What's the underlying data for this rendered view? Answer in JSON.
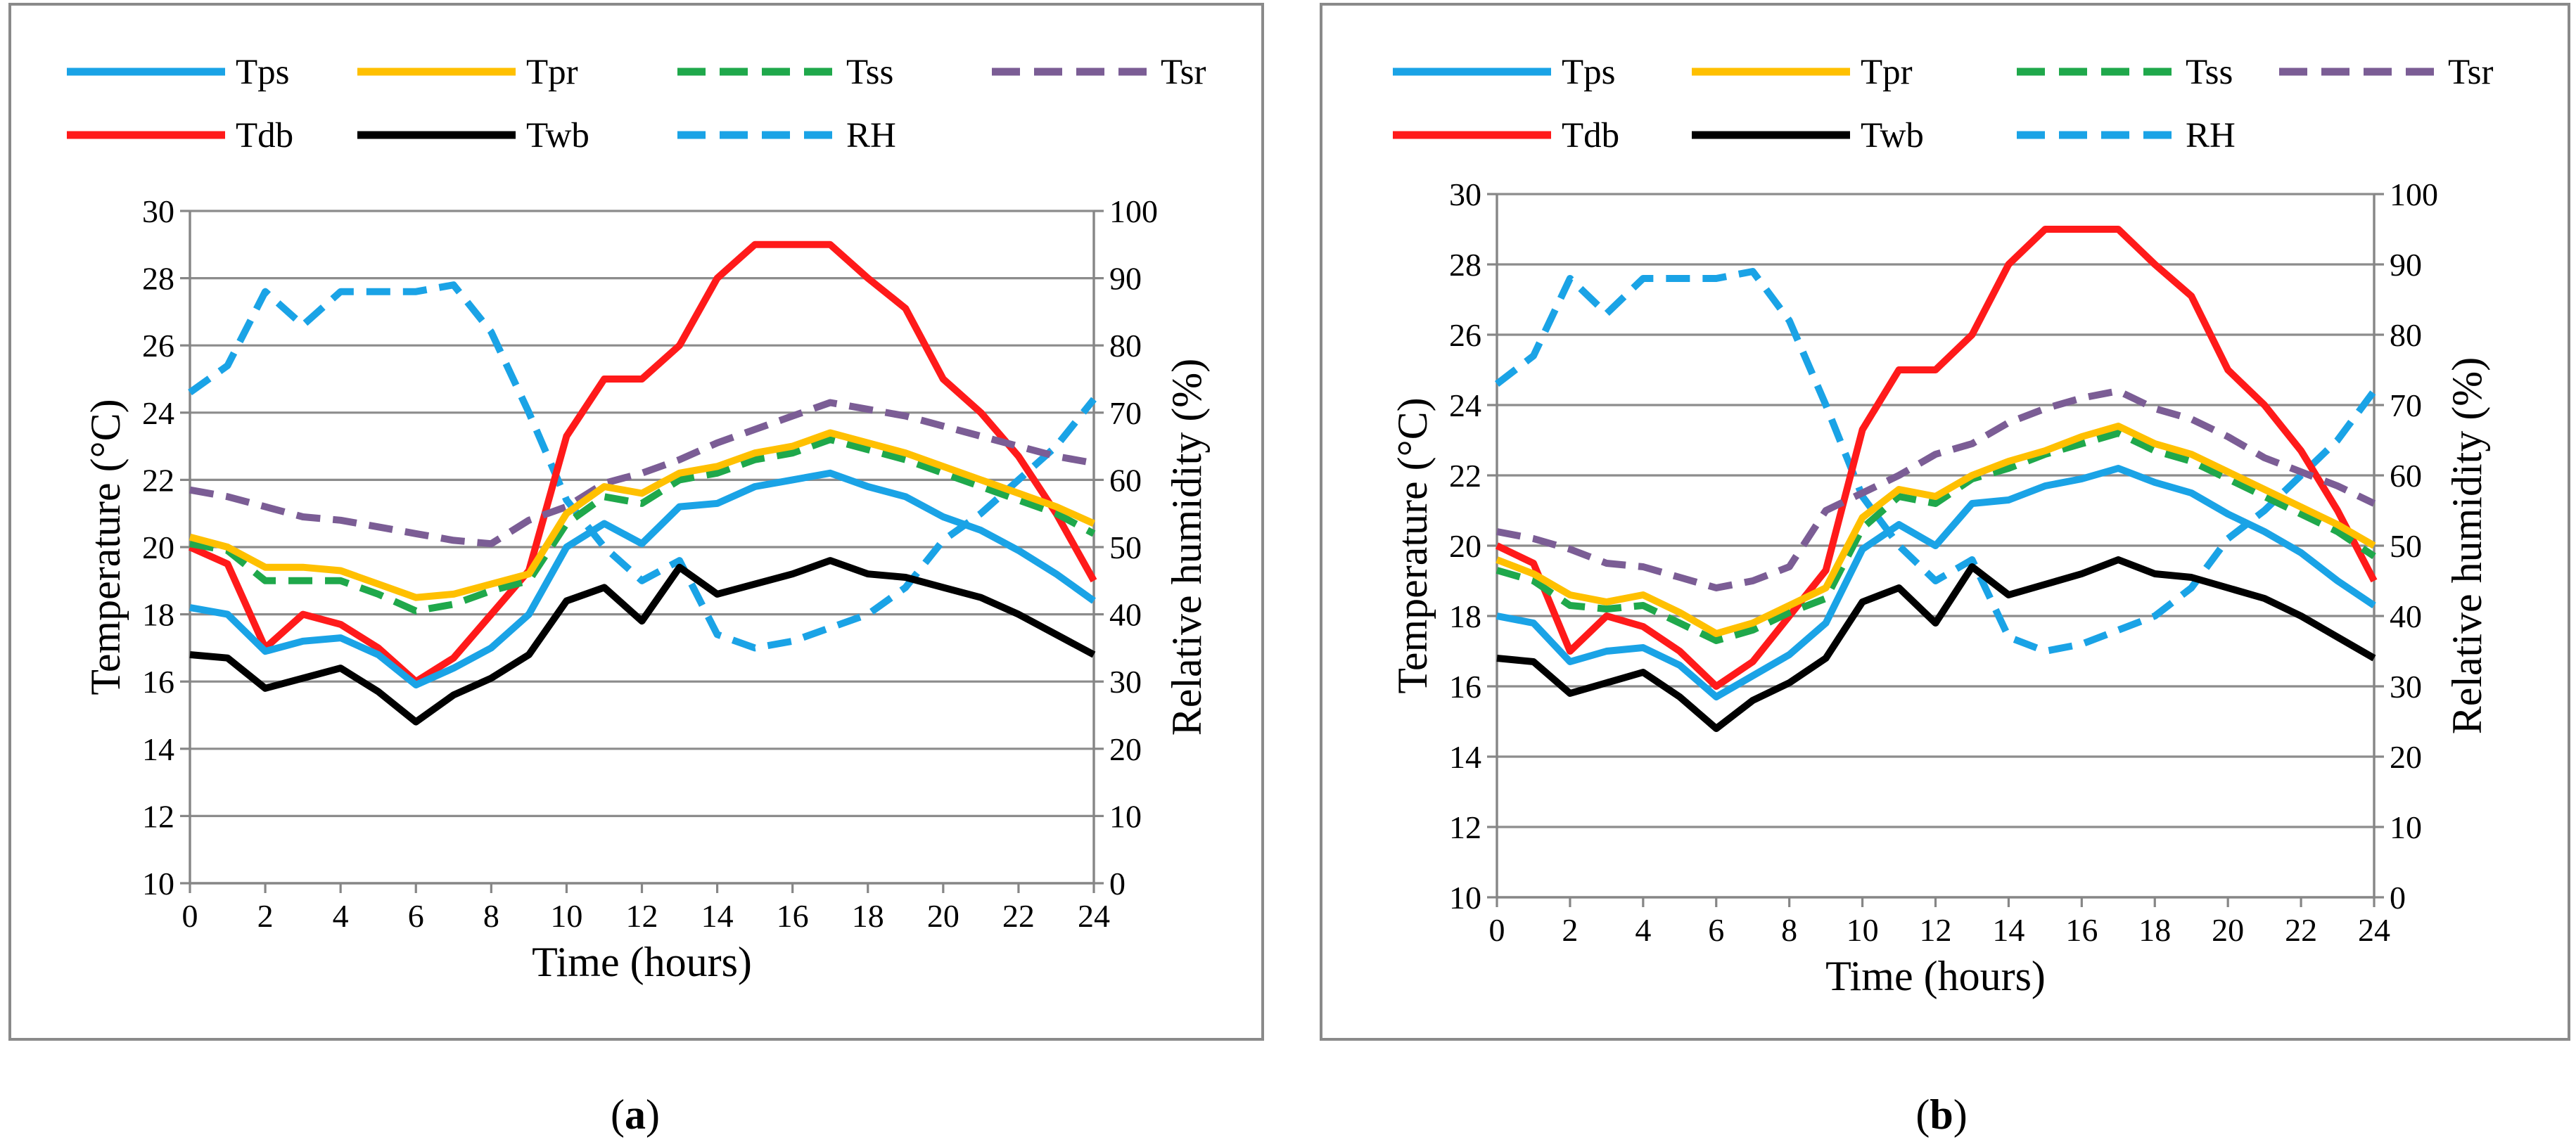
{
  "figure": {
    "captions": [
      {
        "pre": "(",
        "letter": "a",
        "post": ")"
      },
      {
        "pre": "(",
        "letter": "b",
        "post": ")"
      }
    ],
    "colors": {
      "Tps": "#1aa3e6",
      "Tpr": "#ffc000",
      "Tss": "#1fa84b",
      "Tsr": "#7b5d95",
      "Tdb": "#ff1a1a",
      "Twb": "#000000",
      "RH": "#1aa3e6"
    }
  },
  "chart_data": [
    {
      "type": "line",
      "panel": "a",
      "title": "",
      "xlabel": "Time (hours)",
      "ylabel": "Temperature (°C)",
      "ylabel2": "Relative humidity (%)",
      "xlim": [
        0,
        24
      ],
      "ylim": [
        10,
        30
      ],
      "y2lim": [
        0,
        100
      ],
      "xticks": [
        "0",
        "2",
        "4",
        "6",
        "8",
        "10",
        "12",
        "14",
        "16",
        "18",
        "20",
        "22",
        "24"
      ],
      "yticks": [
        "10",
        "12",
        "14",
        "16",
        "18",
        "20",
        "22",
        "24",
        "26",
        "28",
        "30"
      ],
      "y2ticks": [
        "0",
        "10",
        "20",
        "30",
        "40",
        "50",
        "60",
        "70",
        "80",
        "90",
        "100"
      ],
      "legend_position": "top",
      "grid": true,
      "x": [
        0,
        1,
        2,
        3,
        4,
        5,
        6,
        7,
        8,
        9,
        10,
        11,
        12,
        13,
        14,
        15,
        16,
        17,
        18,
        19,
        20,
        21,
        22,
        23,
        24
      ],
      "series": [
        {
          "name": "Tps",
          "axis": "left",
          "style": "solid",
          "values": [
            18.2,
            18.0,
            16.9,
            17.2,
            17.3,
            16.8,
            15.9,
            16.4,
            17.0,
            18.0,
            20.0,
            20.7,
            20.1,
            21.2,
            21.3,
            21.8,
            22.0,
            22.2,
            21.8,
            21.5,
            20.9,
            20.5,
            19.9,
            19.2,
            18.4
          ]
        },
        {
          "name": "Tpr",
          "axis": "left",
          "style": "solid",
          "values": [
            20.3,
            20.0,
            19.4,
            19.4,
            19.3,
            18.9,
            18.5,
            18.6,
            18.9,
            19.2,
            21.0,
            21.8,
            21.6,
            22.2,
            22.4,
            22.8,
            23.0,
            23.4,
            23.1,
            22.8,
            22.4,
            22.0,
            21.6,
            21.2,
            20.7
          ]
        },
        {
          "name": "Tss",
          "axis": "left",
          "style": "dashed",
          "values": [
            20.1,
            19.9,
            19.0,
            19.0,
            19.0,
            18.6,
            18.1,
            18.3,
            18.7,
            19.0,
            20.7,
            21.5,
            21.3,
            22.0,
            22.2,
            22.6,
            22.8,
            23.2,
            22.9,
            22.6,
            22.2,
            21.8,
            21.4,
            21.0,
            20.4
          ]
        },
        {
          "name": "Tsr",
          "axis": "left",
          "style": "dashed",
          "values": [
            21.7,
            21.5,
            21.2,
            20.9,
            20.8,
            20.6,
            20.4,
            20.2,
            20.1,
            20.8,
            21.2,
            21.9,
            22.2,
            22.6,
            23.1,
            23.5,
            23.9,
            24.3,
            24.1,
            23.9,
            23.6,
            23.3,
            23.0,
            22.7,
            22.5
          ]
        },
        {
          "name": "Tdb",
          "axis": "left",
          "style": "solid",
          "values": [
            20.0,
            19.5,
            17.0,
            18.0,
            17.7,
            17.0,
            16.0,
            16.7,
            18.0,
            19.3,
            23.3,
            25.0,
            25.0,
            26.0,
            28.0,
            29.0,
            29.0,
            29.0,
            28.0,
            27.1,
            25.0,
            24.0,
            22.7,
            21.0,
            19.0
          ]
        },
        {
          "name": "Twb",
          "axis": "left",
          "style": "solid",
          "values": [
            16.8,
            16.7,
            15.8,
            16.1,
            16.4,
            15.7,
            14.8,
            15.6,
            16.1,
            16.8,
            18.4,
            18.8,
            17.8,
            19.4,
            18.6,
            18.9,
            19.2,
            19.6,
            19.2,
            19.1,
            18.8,
            18.5,
            18.0,
            17.4,
            16.8
          ]
        },
        {
          "name": "RH",
          "axis": "right",
          "style": "dashed",
          "values": [
            73,
            77,
            88,
            83,
            88,
            88,
            88,
            89,
            82,
            70,
            57,
            50,
            45,
            48,
            37,
            35,
            36,
            38,
            40,
            44,
            51,
            55,
            60,
            65,
            72
          ]
        }
      ]
    },
    {
      "type": "line",
      "panel": "b",
      "title": "",
      "xlabel": "Time (hours)",
      "ylabel": "Temperature (°C)",
      "ylabel2": "Relative humidity (%)",
      "xlim": [
        0,
        24
      ],
      "ylim": [
        10,
        30
      ],
      "y2lim": [
        0,
        100
      ],
      "xticks": [
        "0",
        "2",
        "4",
        "6",
        "8",
        "10",
        "12",
        "14",
        "16",
        "18",
        "20",
        "22",
        "24"
      ],
      "yticks": [
        "10",
        "12",
        "14",
        "16",
        "18",
        "20",
        "22",
        "24",
        "26",
        "28",
        "30"
      ],
      "y2ticks": [
        "0",
        "10",
        "20",
        "30",
        "40",
        "50",
        "60",
        "70",
        "80",
        "90",
        "100"
      ],
      "legend_position": "top",
      "grid": true,
      "x": [
        0,
        1,
        2,
        3,
        4,
        5,
        6,
        7,
        8,
        9,
        10,
        11,
        12,
        13,
        14,
        15,
        16,
        17,
        18,
        19,
        20,
        21,
        22,
        23,
        24
      ],
      "series": [
        {
          "name": "Tps",
          "axis": "left",
          "style": "solid",
          "values": [
            18.0,
            17.8,
            16.7,
            17.0,
            17.1,
            16.6,
            15.7,
            16.3,
            16.9,
            17.8,
            19.9,
            20.6,
            20.0,
            21.2,
            21.3,
            21.7,
            21.9,
            22.2,
            21.8,
            21.5,
            20.9,
            20.4,
            19.8,
            19.0,
            18.3
          ]
        },
        {
          "name": "Tpr",
          "axis": "left",
          "style": "solid",
          "values": [
            19.6,
            19.2,
            18.6,
            18.4,
            18.6,
            18.1,
            17.5,
            17.8,
            18.3,
            18.8,
            20.8,
            21.6,
            21.4,
            22.0,
            22.4,
            22.7,
            23.1,
            23.4,
            22.9,
            22.6,
            22.1,
            21.6,
            21.1,
            20.6,
            20.0
          ]
        },
        {
          "name": "Tss",
          "axis": "left",
          "style": "dashed",
          "values": [
            19.3,
            19.0,
            18.3,
            18.2,
            18.3,
            17.8,
            17.3,
            17.6,
            18.1,
            18.5,
            20.5,
            21.4,
            21.2,
            21.9,
            22.2,
            22.6,
            22.9,
            23.2,
            22.7,
            22.4,
            21.9,
            21.4,
            20.9,
            20.4,
            19.7
          ]
        },
        {
          "name": "Tsr",
          "axis": "left",
          "style": "dashed",
          "values": [
            20.4,
            20.2,
            19.9,
            19.5,
            19.4,
            19.1,
            18.8,
            19.0,
            19.4,
            21.0,
            21.5,
            22.0,
            22.6,
            22.9,
            23.5,
            23.9,
            24.2,
            24.4,
            23.9,
            23.6,
            23.1,
            22.5,
            22.1,
            21.7,
            21.2
          ]
        },
        {
          "name": "Tdb",
          "axis": "left",
          "style": "solid",
          "values": [
            20.0,
            19.5,
            17.0,
            18.0,
            17.7,
            17.0,
            16.0,
            16.7,
            18.0,
            19.3,
            23.3,
            25.0,
            25.0,
            26.0,
            28.0,
            29.0,
            29.0,
            29.0,
            28.0,
            27.1,
            25.0,
            24.0,
            22.7,
            21.0,
            19.0
          ]
        },
        {
          "name": "Twb",
          "axis": "left",
          "style": "solid",
          "values": [
            16.8,
            16.7,
            15.8,
            16.1,
            16.4,
            15.7,
            14.8,
            15.6,
            16.1,
            16.8,
            18.4,
            18.8,
            17.8,
            19.4,
            18.6,
            18.9,
            19.2,
            19.6,
            19.2,
            19.1,
            18.8,
            18.5,
            18.0,
            17.4,
            16.8
          ]
        },
        {
          "name": "RH",
          "axis": "right",
          "style": "dashed",
          "values": [
            73,
            77,
            88,
            83,
            88,
            88,
            88,
            89,
            82,
            70,
            57,
            50,
            45,
            48,
            37,
            35,
            36,
            38,
            40,
            44,
            51,
            55,
            60,
            65,
            72
          ]
        }
      ]
    }
  ]
}
